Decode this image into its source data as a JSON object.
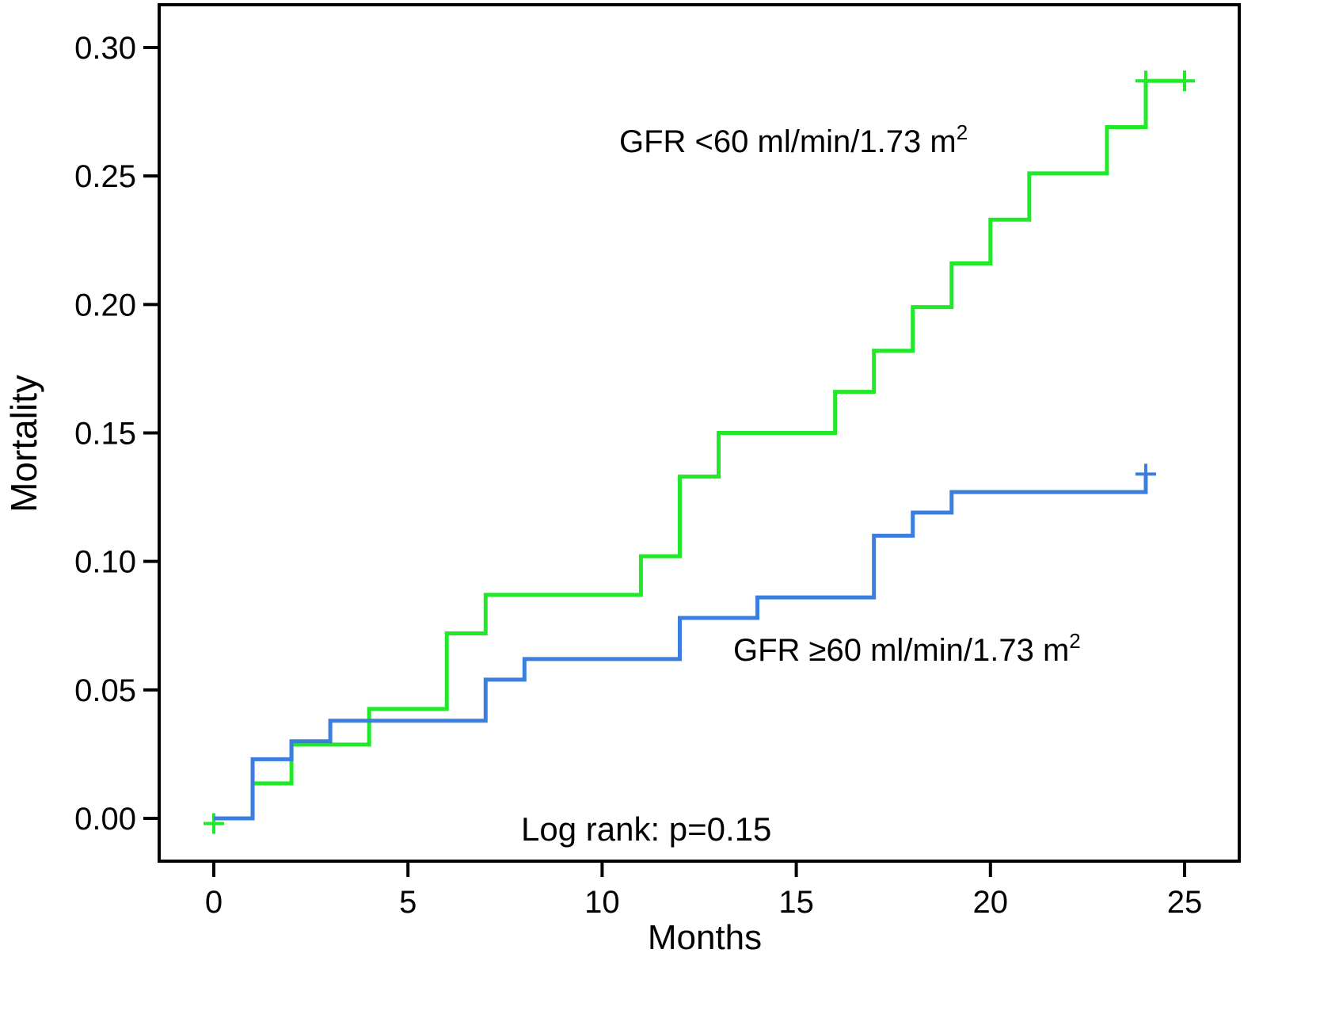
{
  "chart_data": {
    "type": "line",
    "subtype": "kaplan-meier step",
    "title": "",
    "xlabel": "Months",
    "ylabel": "Mortality",
    "xlim": [
      -1.4,
      26.4
    ],
    "ylim": [
      -0.017,
      0.318
    ],
    "x_ticks": [
      0,
      5,
      10,
      15,
      20,
      25
    ],
    "x_tick_labels": [
      "0",
      "5",
      "10",
      "15",
      "20",
      "25"
    ],
    "y_ticks": [
      0.0,
      0.05,
      0.1,
      0.15,
      0.2,
      0.25,
      0.3
    ],
    "y_tick_labels": [
      "0.00",
      "0.05",
      "0.10",
      "0.15",
      "0.20",
      "0.25",
      "0.30"
    ],
    "grid": false,
    "annotation": "Log rank: p=0.15",
    "series": [
      {
        "name": "GFR <60 ml/min/1.73 m2",
        "label_main": "GFR <60 ml/min/1.73 m",
        "label_sup": "2",
        "color": "#22e82a",
        "steps": [
          [
            0,
            0.0
          ],
          [
            1,
            0.0136
          ],
          [
            2,
            0.0287
          ],
          [
            4,
            0.0426
          ],
          [
            6,
            0.072
          ],
          [
            7,
            0.087
          ],
          [
            11,
            0.102
          ],
          [
            12,
            0.133
          ],
          [
            13,
            0.15
          ],
          [
            16,
            0.166
          ],
          [
            17,
            0.182
          ],
          [
            18,
            0.199
          ],
          [
            19,
            0.216
          ],
          [
            20,
            0.233
          ],
          [
            21,
            0.251
          ],
          [
            23,
            0.269
          ],
          [
            24,
            0.287
          ]
        ],
        "end_x": 25,
        "censored": [
          [
            0,
            -0.002
          ],
          [
            24,
            0.287
          ],
          [
            25,
            0.287
          ]
        ]
      },
      {
        "name": "GFR ≥60 ml/min/1.73 m2",
        "label_main": "GFR ≥60 ml/min/1.73 m",
        "label_sup": "2",
        "color": "#3a7ee0",
        "steps": [
          [
            0,
            0.0
          ],
          [
            1,
            0.023
          ],
          [
            2,
            0.03
          ],
          [
            3,
            0.038
          ],
          [
            7,
            0.054
          ],
          [
            8,
            0.062
          ],
          [
            12,
            0.078
          ],
          [
            14,
            0.086
          ],
          [
            17,
            0.11
          ],
          [
            18,
            0.119
          ],
          [
            19,
            0.127
          ],
          [
            24,
            0.134
          ]
        ],
        "end_x": 24,
        "censored": [
          [
            24,
            0.134
          ]
        ]
      }
    ]
  }
}
